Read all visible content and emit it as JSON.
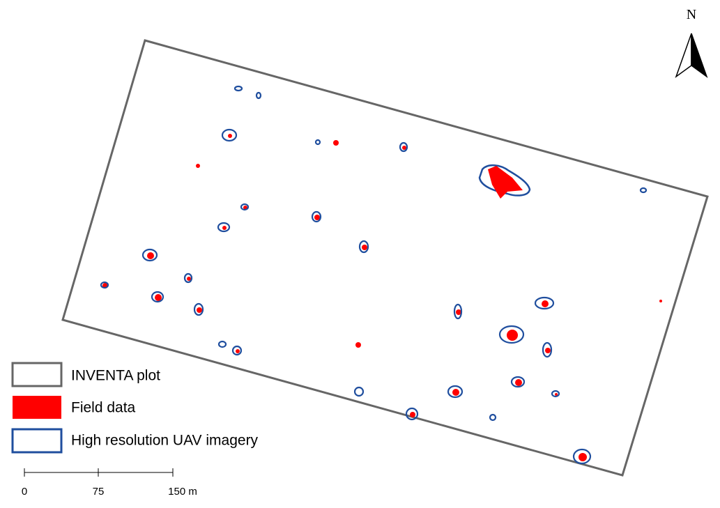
{
  "north_arrow": {
    "label": "N"
  },
  "legend": {
    "items": [
      {
        "label": "INVENTA plot"
      },
      {
        "label": "Field data"
      },
      {
        "label": "High resolution UAV imagery"
      }
    ]
  },
  "scale_bar": {
    "labels": [
      "0",
      "75",
      "150 m"
    ]
  }
}
